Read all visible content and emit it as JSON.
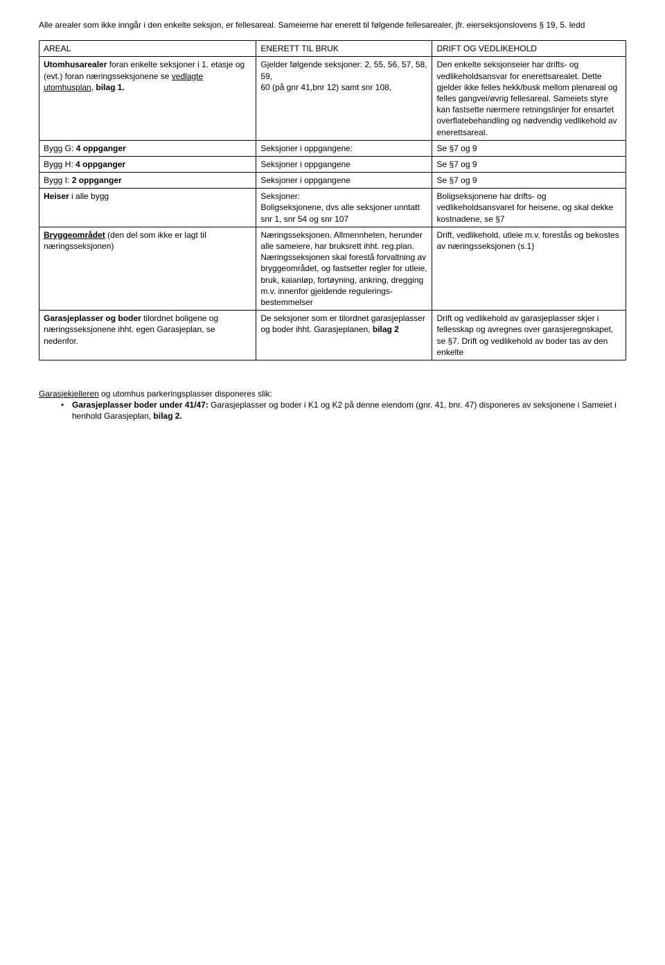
{
  "intro": "Alle arealer som ikke inngår i den enkelte seksjon, er fellesareal. Sameierne har enerett til følgende fellesarealer, jfr. eierseksjonslovens § 19, 5. ledd",
  "table": {
    "header": {
      "c0": "AREAL",
      "c1": "ENERETT TIL BRUK",
      "c2": "DRIFT OG VEDLIKEHOLD"
    },
    "r1": {
      "c0a": "Utomhusarealer",
      "c0b": " foran enkelte seksjoner i 1. etasje og (evt.) foran næringsseksjonene se ",
      "c0c": "vedlagte utomhusplan",
      "c0d": ", ",
      "c0e": "bilag 1.",
      "c1": "Gjelder følgende seksjoner:  2, 55, 56, 57, 58, 59,\n60 (på gnr 41,bnr 12) samt snr 108,",
      "c2": "Den enkelte seksjonseier har drifts- og vedlikeholdsansvar for enerettsarealet. Dette gjelder ikke felles hekk/busk mellom plenareal og felles gangvei/øvrig fellesareal.  Sameiets styre kan fastsette nærmere retningslinjer for ensartet overflatebehandling og nødvendig vedlikehold av enerettsareal."
    },
    "r2": {
      "c0a": "Bygg G: ",
      "c0b": "4 oppganger",
      "c1": "Seksjoner i oppgangene:",
      "c2": "Se §7 og 9"
    },
    "r3": {
      "c0a": "Bygg H: ",
      "c0b": "4 oppganger",
      "c1": "Seksjoner i oppgangene",
      "c2": "Se §7 og 9"
    },
    "r4": {
      "c0a": "Bygg I:  ",
      "c0b": "2 oppganger",
      "c1": "Seksjoner i oppgangene",
      "c2": "Se §7 og 9"
    },
    "r5": {
      "c0a": "Heiser",
      "c0b": "  i alle bygg",
      "c1": "Seksjoner:\nBoligseksjonene, dvs alle seksjoner unntatt snr 1, snr 54 og snr 107",
      "c2": "Boligseksjonene har drifts- og vedlikeholdsansvaret for heisene, og skal dekke kostnadene, se §7"
    },
    "r6": {
      "c0a": "Bryggeområdet",
      "c0b": " (den del som ikke er lagt til næringsseksjonen)",
      "c1": "Næringsseksjonen. Allmennheten, herunder alle sameiere,  har bruksrett ihht. reg.plan. Næringsseksjonen skal forestå forvaltning av bryggeområdet, og fastsetter regler for utleie, bruk, kaianløp, fortøyning, ankring, dregging m.v. innenfor gjeldende regulerings-bestemmelser",
      "c2": "Drift, vedlikehold, utleie m.v. forestås og bekostes av næringsseksjonen (s.1)"
    },
    "r7": {
      "c0a": "Garasjeplasser og boder",
      "c0b": " tilordnet boligene og næringsseksjonene ihht. egen Garasjeplan, se nedenfor.",
      "c1a": "De seksjoner som er tilordnet garasjeplasser og boder ihht. Garasjeplanen, ",
      "c1b": "bilag 2",
      "c2": "Drift og vedlikehold av garasjeplasser skjer i fellesskap og avregnes over garasjeregnskapet, se §7. Drift og vedlikehold av boder tas av den enkelte"
    }
  },
  "footer": {
    "line1a": "Garasjekjelleren",
    "line1b": " og utomhus parkeringsplasser disponeres slik:",
    "bullet1a": "Garasjeplasser boder under 41/47:",
    "bullet1b": " Garasjeplasser og boder i K1 og K2 på denne eiendom (gnr. 41, bnr. 47) disponeres av seksjonene i Sameiet i henhold Garasjeplan, ",
    "bullet1c": "bilag 2."
  }
}
